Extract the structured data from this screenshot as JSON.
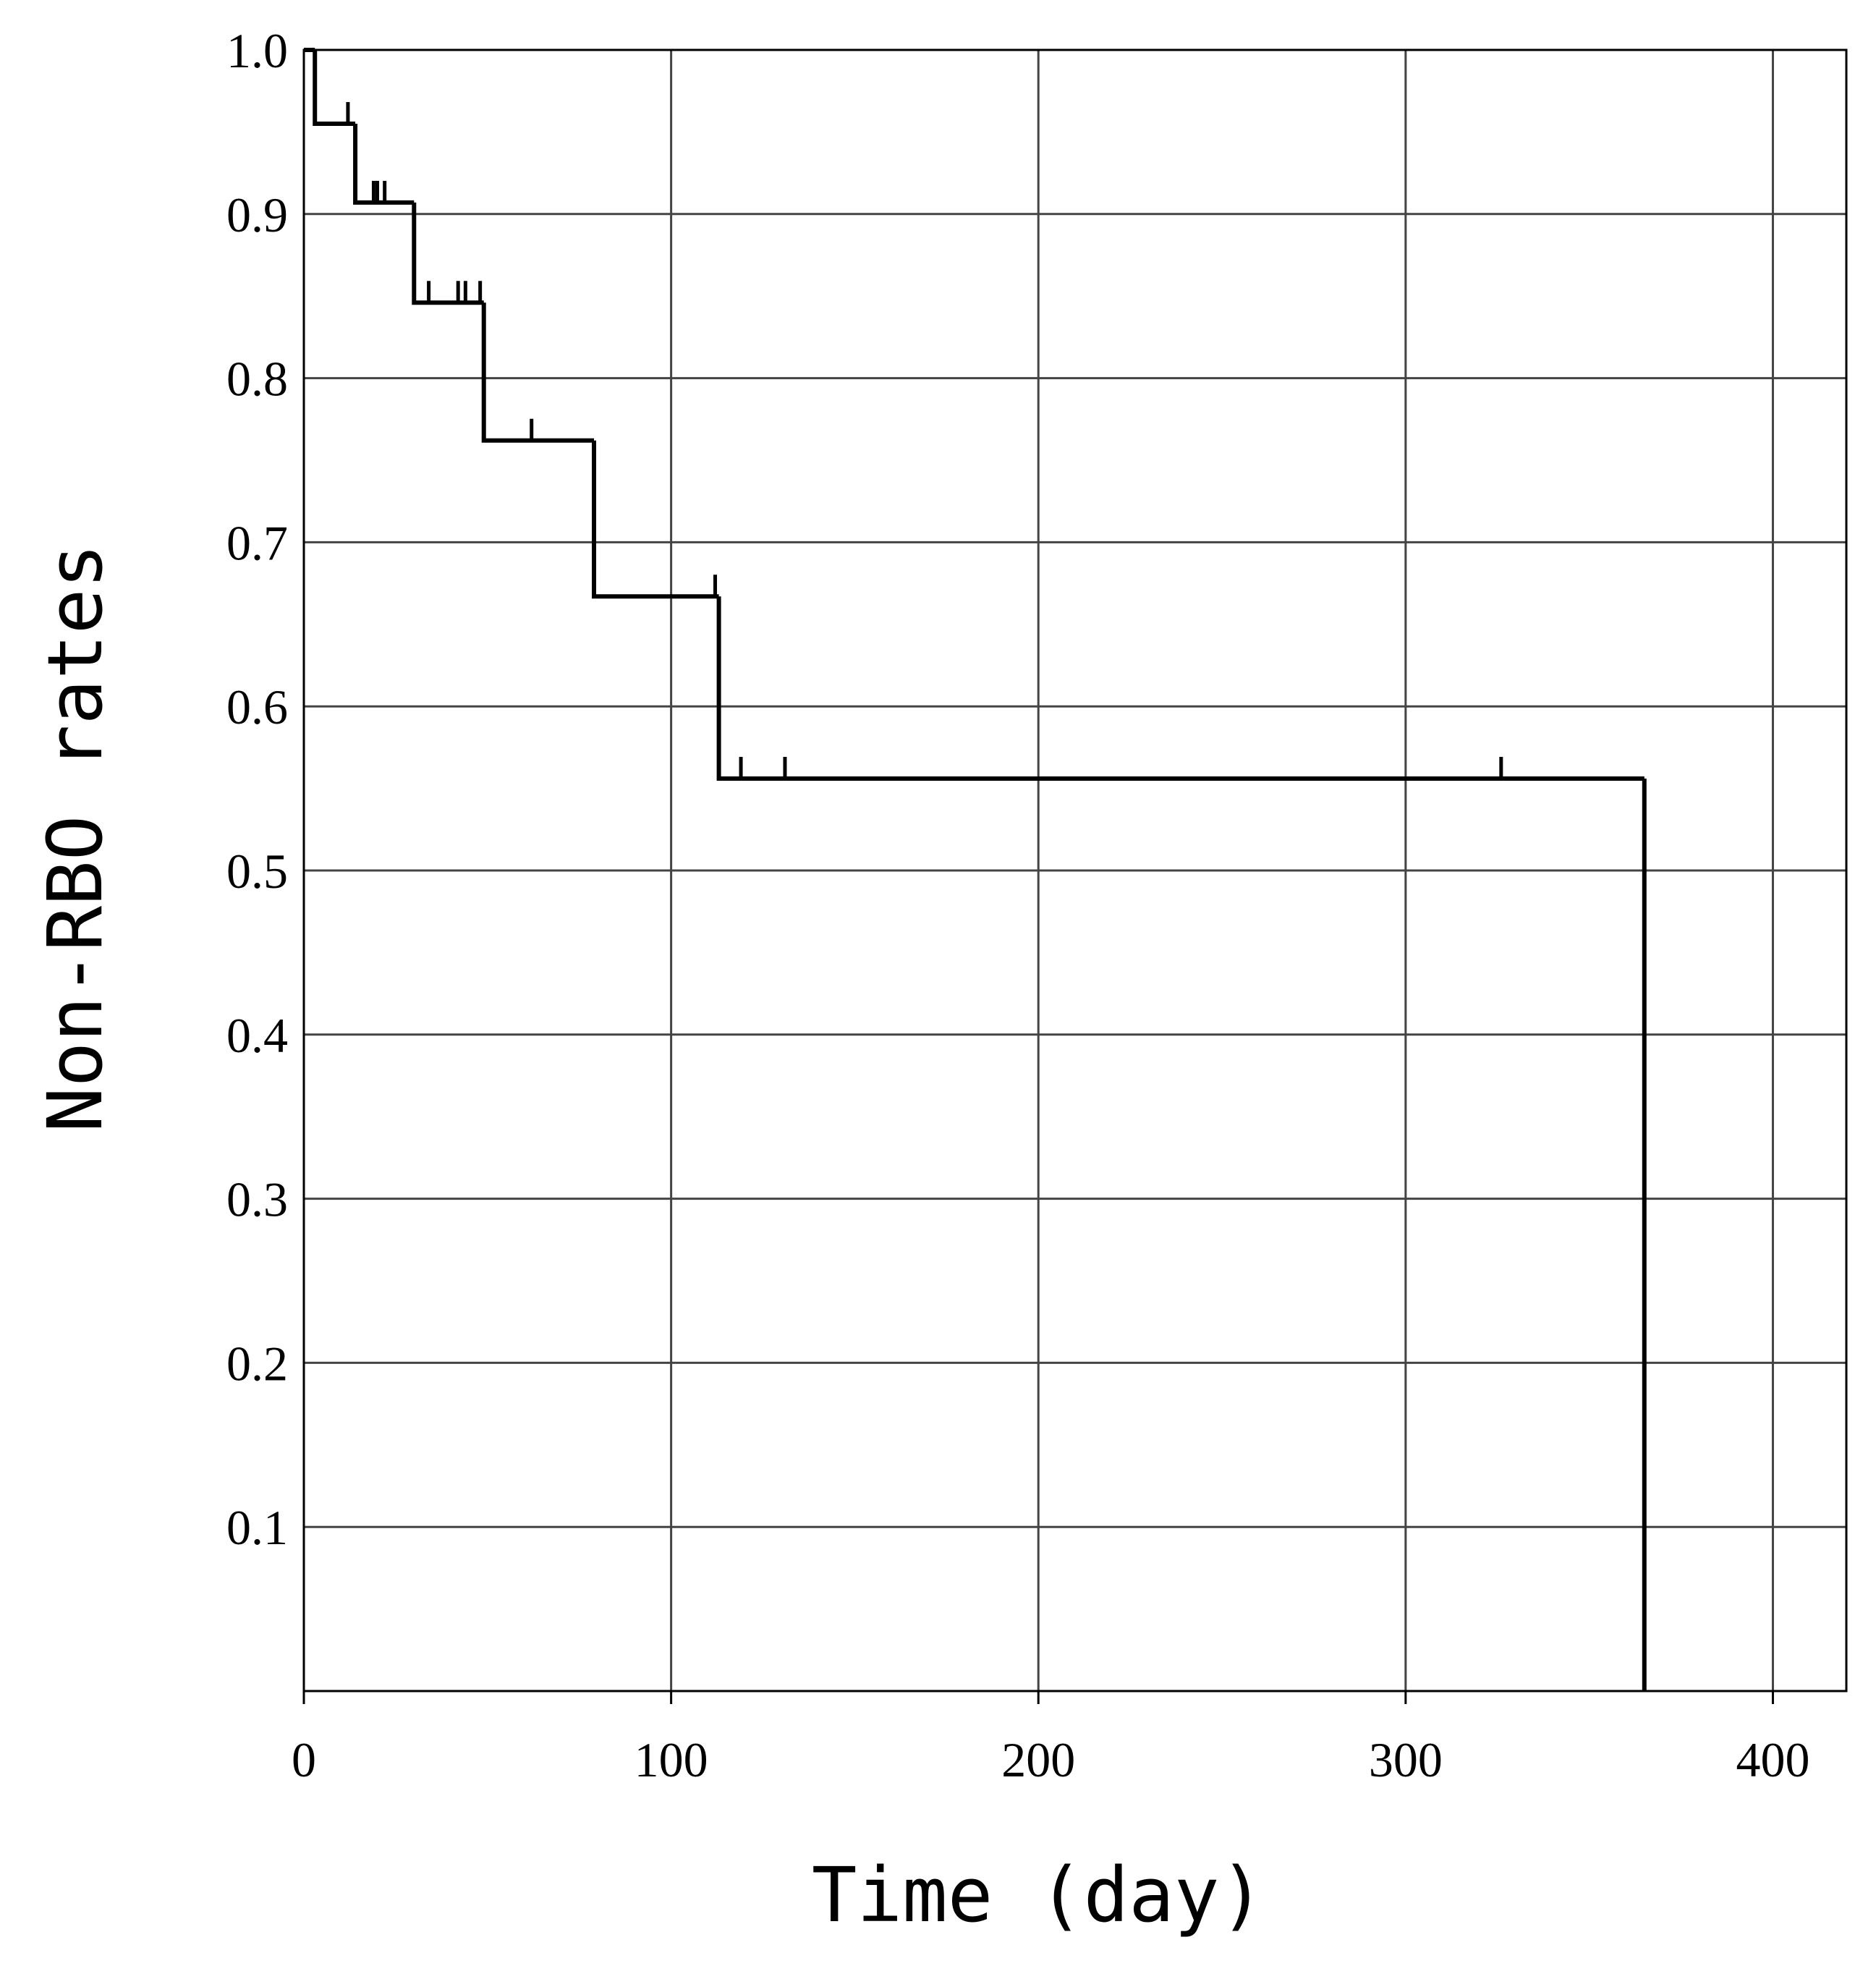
{
  "chart_data": {
    "type": "step",
    "xlabel": "Time (day)",
    "ylabel": "Non-RBO rates",
    "xlim": [
      0,
      420
    ],
    "xticks": [
      0,
      100,
      200,
      300,
      400
    ],
    "ylim": [
      0,
      1
    ],
    "yticks": [
      0.1,
      0.2,
      0.3,
      0.4,
      0.5,
      0.6,
      0.7,
      0.8,
      0.9,
      {
        "value": 1,
        "label": "1.0"
      }
    ],
    "grid": true,
    "color": "#000000",
    "x": [
      0,
      3,
      14,
      30,
      49,
      79,
      113,
      365
    ],
    "values": [
      1,
      0.955,
      0.907,
      0.846,
      0.762,
      0.667,
      0.556,
      0
    ],
    "censored": {
      "x": [
        12,
        19,
        20,
        22,
        34,
        42,
        44,
        48,
        62,
        112,
        119,
        131,
        326
      ],
      "values": [
        0.955,
        0.907,
        0.907,
        0.907,
        0.846,
        0.846,
        0.846,
        0.846,
        0.762,
        0.667,
        0.556,
        0.556,
        0.556
      ]
    }
  }
}
